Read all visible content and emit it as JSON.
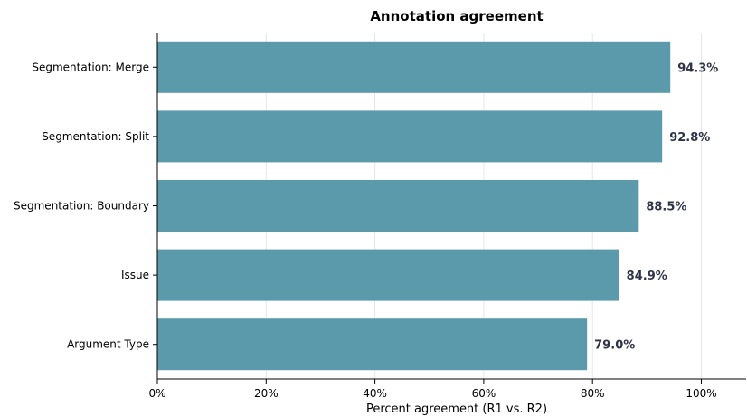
{
  "chart_data": {
    "type": "bar",
    "orientation": "horizontal",
    "title": "Annotation agreement",
    "xlabel": "Percent agreement (R1 vs. R2)",
    "ylabel": "",
    "categories": [
      "Segmentation: Merge",
      "Segmentation: Split",
      "Segmentation: Boundary",
      "Issue",
      "Argument Type"
    ],
    "values": [
      94.3,
      92.8,
      88.5,
      84.9,
      79.0
    ],
    "value_labels": [
      "94.3%",
      "92.8%",
      "88.5%",
      "84.9%",
      "79.0%"
    ],
    "xlim": [
      0,
      108
    ],
    "xticks": [
      0,
      20,
      40,
      60,
      80,
      100
    ],
    "xtick_labels": [
      "0%",
      "20%",
      "40%",
      "60%",
      "80%",
      "100%"
    ],
    "grid": "vertical",
    "bar_color": "#5b9aab",
    "label_color": "#2e3347"
  }
}
